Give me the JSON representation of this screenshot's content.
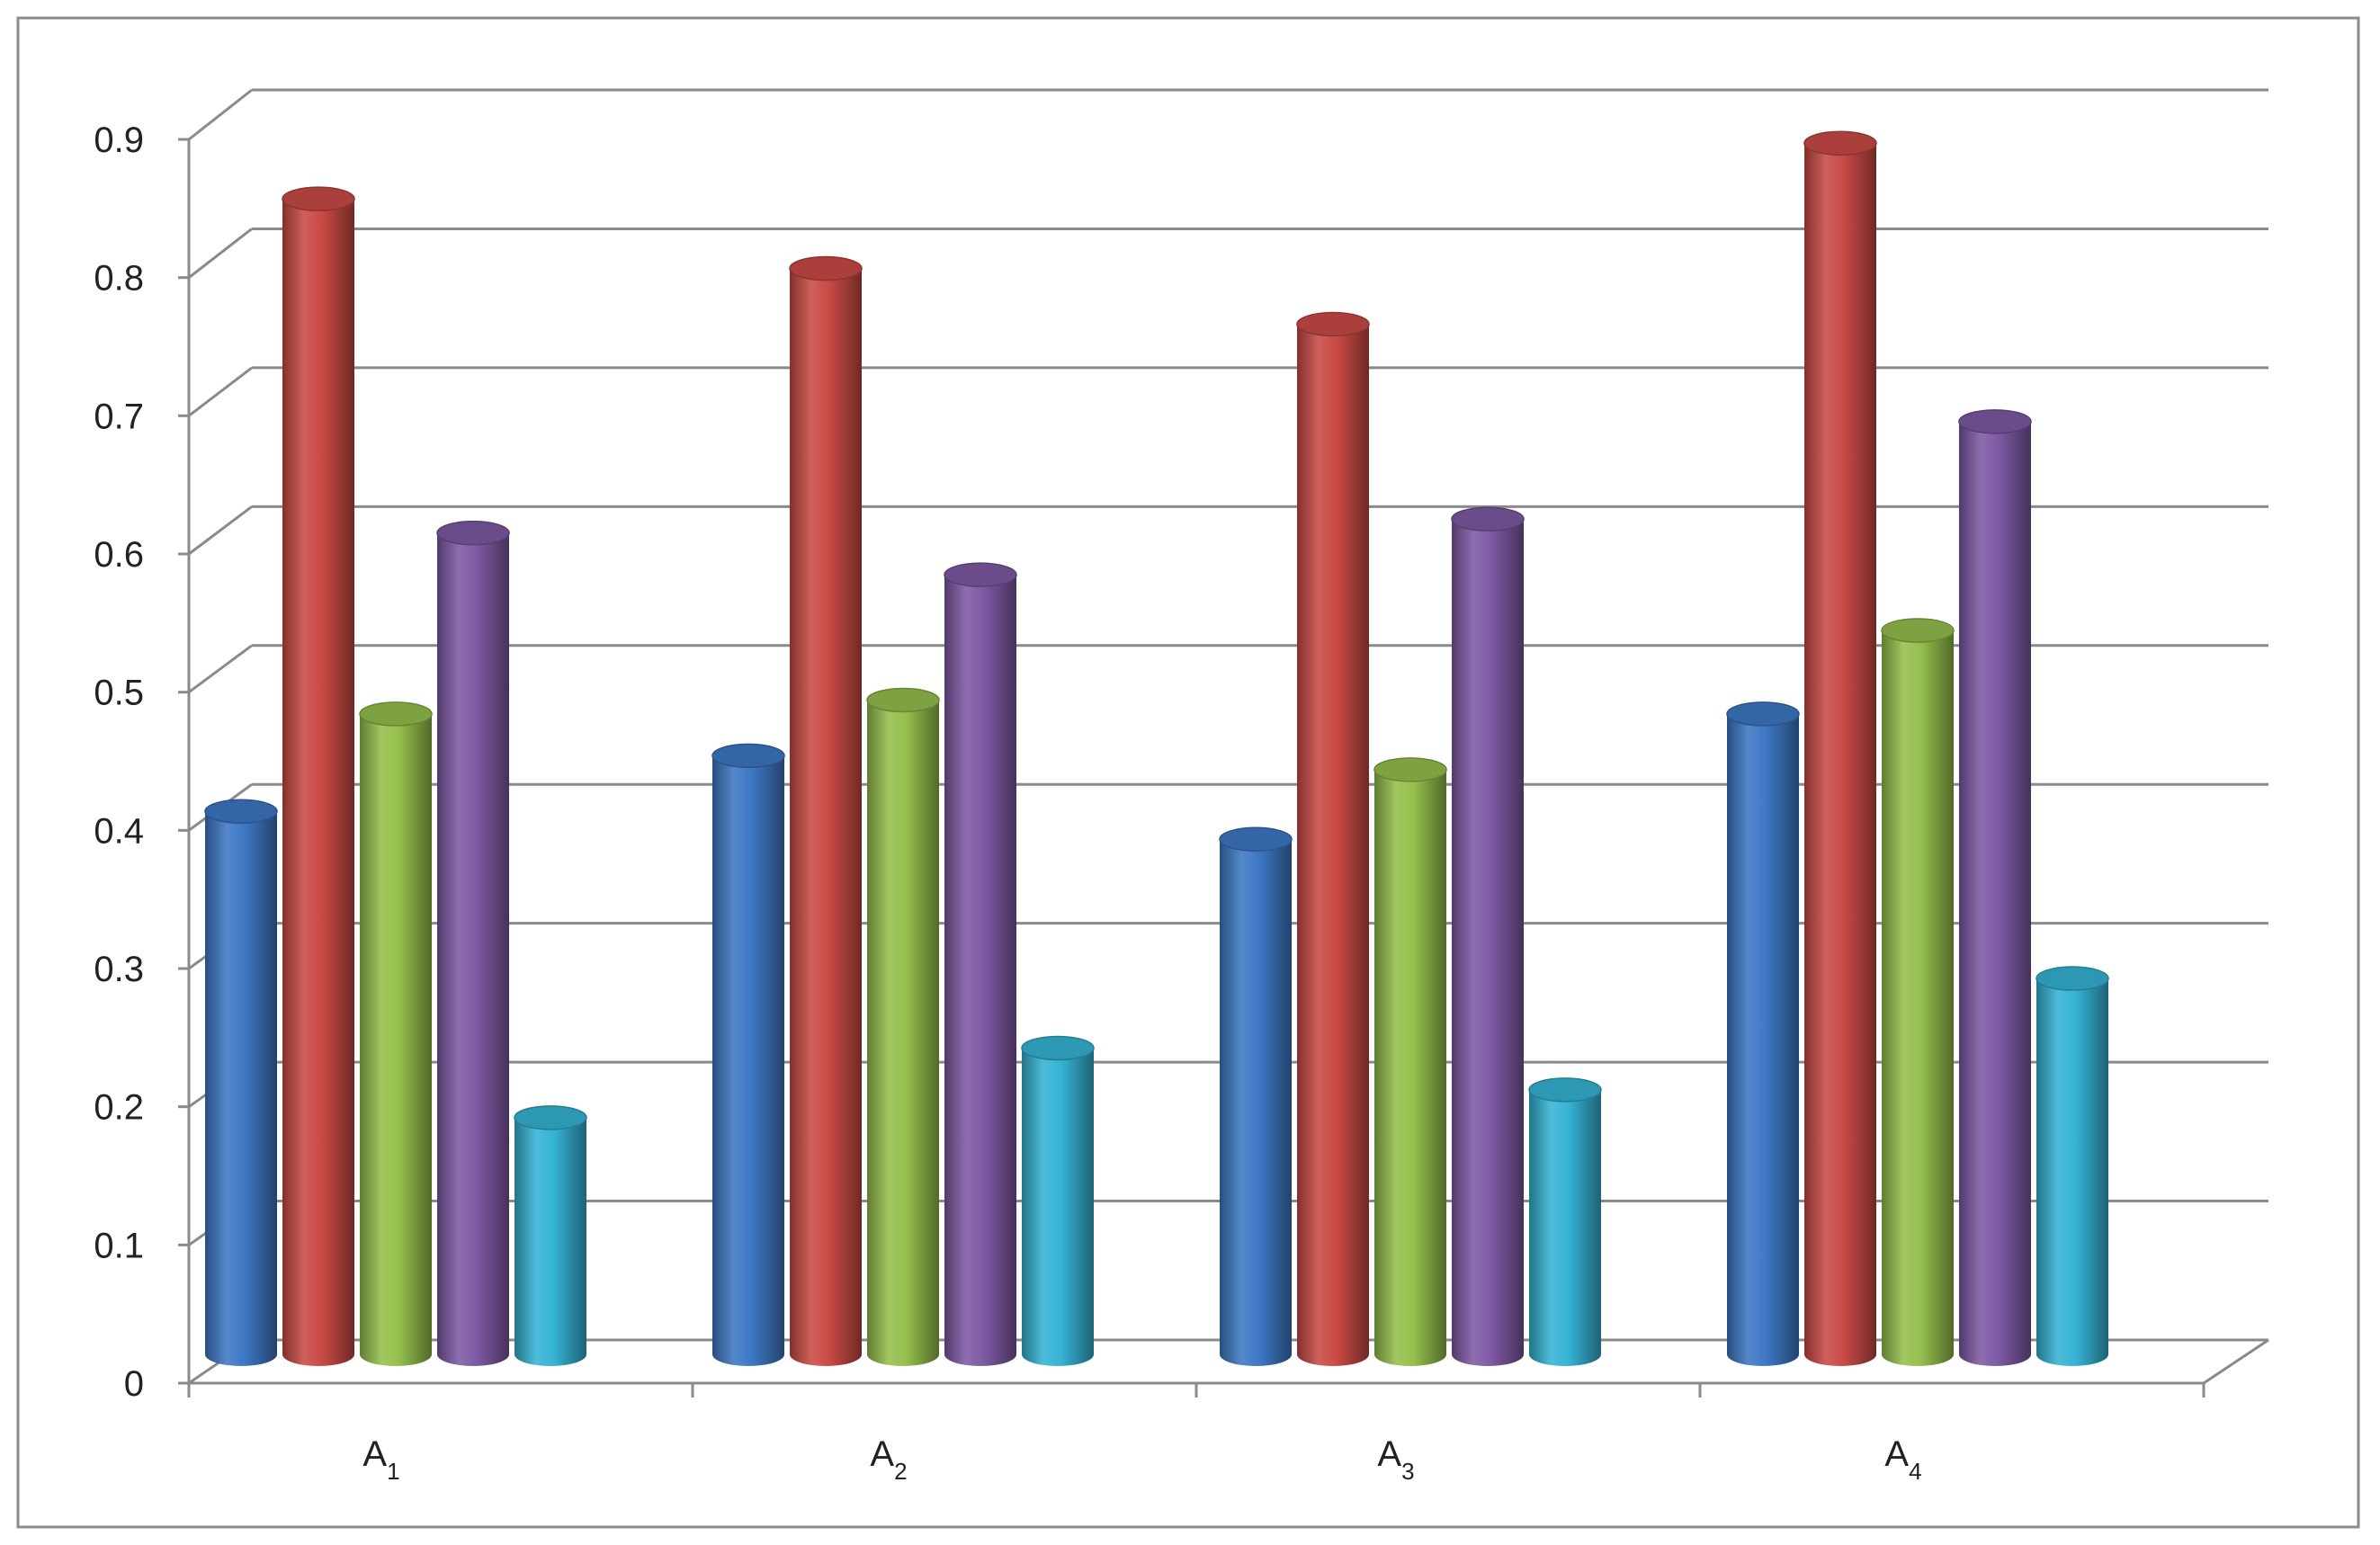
{
  "chart_data": {
    "type": "bar",
    "style": "3d-cylinder",
    "categories": [
      {
        "base": "A",
        "sub": "1"
      },
      {
        "base": "A",
        "sub": "2"
      },
      {
        "base": "A",
        "sub": "3"
      },
      {
        "base": "A",
        "sub": "4"
      }
    ],
    "series": [
      {
        "color": "#3d78c4",
        "values": [
          0.39,
          0.43,
          0.37,
          0.46
        ]
      },
      {
        "color": "#c94a45",
        "values": [
          0.83,
          0.78,
          0.74,
          0.87
        ]
      },
      {
        "color": "#94bf4c",
        "values": [
          0.46,
          0.47,
          0.42,
          0.52
        ]
      },
      {
        "color": "#7e59a4",
        "values": [
          0.59,
          0.56,
          0.6,
          0.67
        ]
      },
      {
        "color": "#35b3d4",
        "values": [
          0.17,
          0.22,
          0.19,
          0.27
        ]
      }
    ],
    "yticks": [
      "0",
      "0.1",
      "0.2",
      "0.3",
      "0.4",
      "0.5",
      "0.6",
      "0.7",
      "0.8",
      "0.9"
    ],
    "ylim": [
      0,
      0.9
    ],
    "grid": true,
    "legend": "none"
  }
}
